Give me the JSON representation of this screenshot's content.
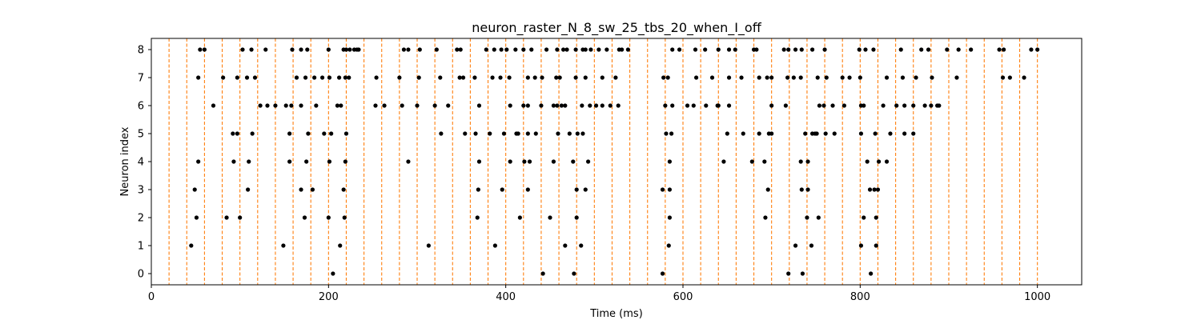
{
  "chart_data": {
    "type": "scatter",
    "title": "neuron_raster_N_8_sw_25_tbs_20_when_I_off",
    "xlabel": "Time (ms)",
    "ylabel": "Neuron index",
    "xlim": [
      0,
      1050
    ],
    "ylim": [
      -0.4,
      8.4
    ],
    "x_ticks": [
      0,
      200,
      400,
      600,
      800,
      1000
    ],
    "y_ticks": [
      0,
      1,
      2,
      3,
      4,
      5,
      6,
      7,
      8
    ],
    "grid": false,
    "marker_color": "#000000",
    "vline_color": "#ff7f0e",
    "vline_style": "dashed",
    "vlines_ms": [
      20,
      40,
      60,
      80,
      100,
      120,
      140,
      160,
      180,
      200,
      220,
      240,
      260,
      280,
      300,
      320,
      340,
      360,
      380,
      400,
      420,
      440,
      460,
      480,
      500,
      520,
      540,
      560,
      580,
      600,
      620,
      640,
      660,
      680,
      700,
      720,
      740,
      760,
      780,
      800,
      820,
      840,
      860,
      880,
      900,
      920,
      940,
      960,
      980,
      1000
    ],
    "spikes": [
      {
        "neuron": 0,
        "times": [
          205,
          442,
          477,
          577,
          719,
          735,
          812
        ]
      },
      {
        "neuron": 1,
        "times": [
          45,
          149,
          213,
          313,
          388,
          467,
          485,
          584,
          727,
          745,
          801,
          818
        ]
      },
      {
        "neuron": 2,
        "times": [
          51,
          85,
          100,
          173,
          200,
          218,
          368,
          416,
          450,
          480,
          585,
          693,
          740,
          753,
          804,
          818
        ]
      },
      {
        "neuron": 3,
        "times": [
          49,
          109,
          169,
          182,
          217,
          369,
          396,
          425,
          480,
          490,
          577,
          585,
          696,
          734,
          741,
          811,
          816,
          820
        ]
      },
      {
        "neuron": 4,
        "times": [
          53,
          93,
          110,
          156,
          175,
          201,
          219,
          290,
          370,
          405,
          421,
          427,
          454,
          476,
          493,
          585,
          646,
          678,
          692,
          733,
          741,
          808,
          821,
          830
        ]
      },
      {
        "neuron": 5,
        "times": [
          92,
          97,
          114,
          156,
          177,
          195,
          203,
          220,
          327,
          354,
          366,
          382,
          398,
          412,
          414,
          425,
          434,
          459,
          472,
          481,
          487,
          581,
          587,
          650,
          668,
          686,
          697,
          700,
          738,
          746,
          749,
          751,
          761,
          771,
          801,
          817,
          834,
          850,
          860
        ]
      },
      {
        "neuron": 6,
        "times": [
          70,
          123,
          131,
          140,
          152,
          158,
          169,
          186,
          210,
          214,
          253,
          263,
          283,
          300,
          320,
          335,
          370,
          405,
          420,
          425,
          440,
          454,
          458,
          463,
          467,
          486,
          495,
          502,
          509,
          518,
          527,
          580,
          588,
          605,
          612,
          626,
          639,
          640,
          652,
          700,
          716,
          754,
          759,
          769,
          782,
          801,
          804,
          826,
          841,
          850,
          860,
          873,
          880,
          887,
          889
        ]
      },
      {
        "neuron": 7,
        "times": [
          53,
          81,
          97,
          108,
          117,
          164,
          174,
          184,
          193,
          201,
          212,
          219,
          223,
          254,
          280,
          302,
          326,
          348,
          352,
          365,
          385,
          394,
          404,
          425,
          433,
          441,
          457,
          461,
          479,
          490,
          509,
          524,
          578,
          583,
          615,
          633,
          652,
          666,
          686,
          695,
          700,
          718,
          725,
          733,
          752,
          762,
          780,
          788,
          800,
          830,
          848,
          863,
          881,
          909,
          961,
          969,
          985
        ]
      },
      {
        "neuron": 8,
        "times": [
          55,
          60,
          103,
          113,
          129,
          159,
          169,
          176,
          200,
          217,
          220,
          224,
          229,
          232,
          234,
          285,
          290,
          303,
          322,
          345,
          349,
          378,
          387,
          395,
          401,
          411,
          420,
          429,
          446,
          458,
          465,
          469,
          479,
          487,
          490,
          496,
          505,
          514,
          528,
          531,
          538,
          588,
          596,
          614,
          625,
          640,
          652,
          659,
          680,
          683,
          714,
          719,
          727,
          734,
          746,
          760,
          799,
          806,
          815,
          846,
          869,
          877,
          898,
          911,
          925,
          957,
          962,
          993,
          1000
        ]
      }
    ]
  }
}
